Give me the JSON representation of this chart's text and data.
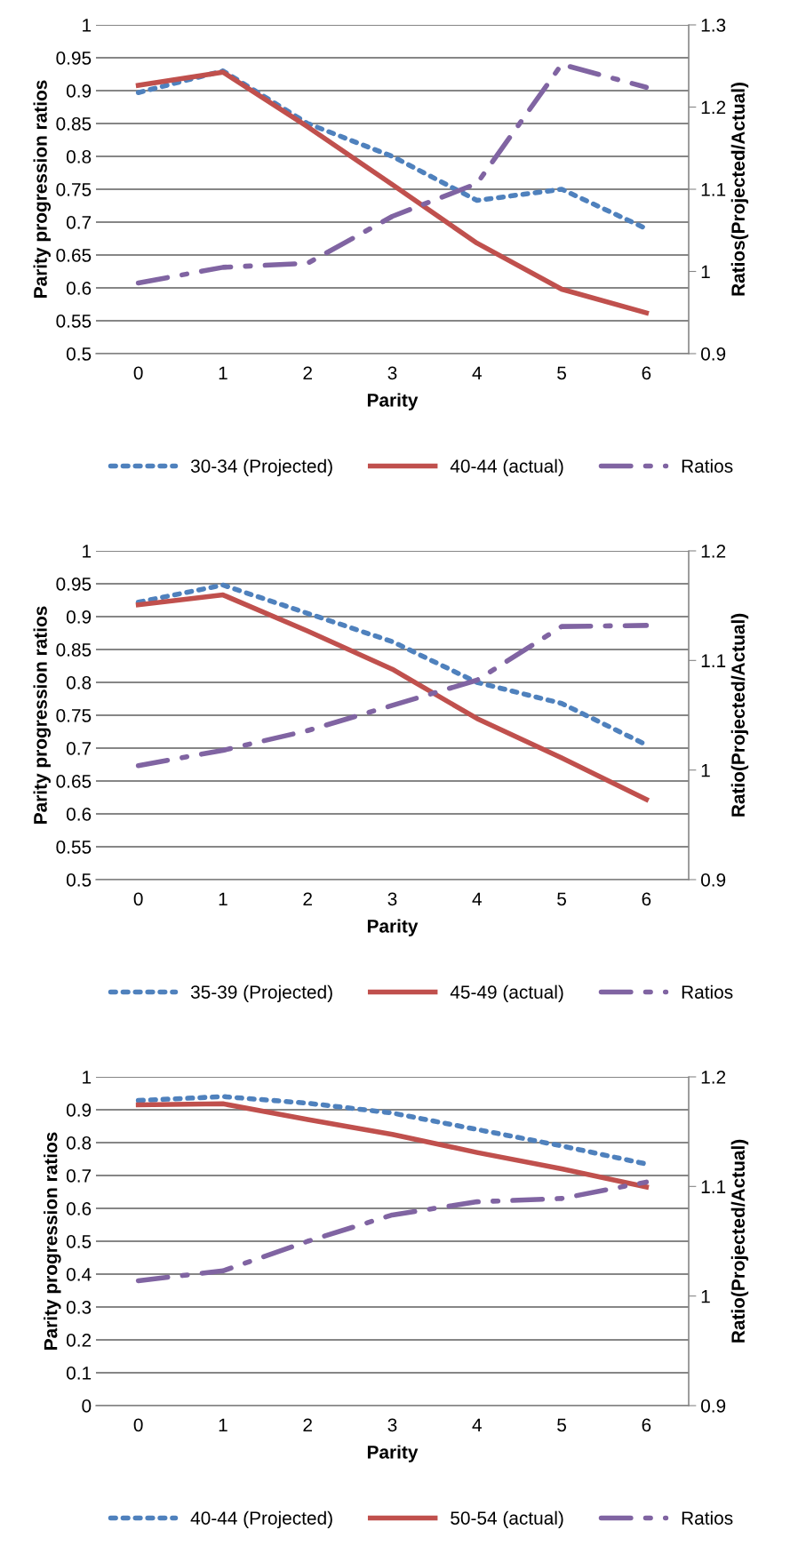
{
  "chart_data": [
    {
      "type": "line",
      "xlabel": "Parity",
      "ylabel": "Parity progression ratios",
      "y2label": "Ratios(Projected/Actual)",
      "categories": [
        "0",
        "1",
        "2",
        "3",
        "4",
        "5",
        "6"
      ],
      "ylim": [
        0.5,
        1
      ],
      "yticks": [
        {
          "value": 0.5,
          "label": "0.5"
        },
        {
          "value": 0.55,
          "label": "0.55"
        },
        {
          "value": 0.6,
          "label": "0.6"
        },
        {
          "value": 0.65,
          "label": "0.65"
        },
        {
          "value": 0.7,
          "label": "0.7"
        },
        {
          "value": 0.75,
          "label": "0.75"
        },
        {
          "value": 0.8,
          "label": "0.8"
        },
        {
          "value": 0.85,
          "label": "0.85"
        },
        {
          "value": 0.9,
          "label": "0.9"
        },
        {
          "value": 0.95,
          "label": "0.95"
        },
        {
          "value": 1,
          "label": "1"
        }
      ],
      "y2lim": [
        0.9,
        1.3
      ],
      "y2ticks": [
        0.9,
        1,
        1.1,
        1.2,
        1.3
      ],
      "grid": "y",
      "legend": "bottom",
      "series": [
        {
          "name": "30-34 (Projected)",
          "color": "#4f81bd",
          "line_style": "dotted",
          "values": [
            0.897,
            0.93,
            0.85,
            0.8,
            0.733,
            0.75,
            0.69
          ]
        },
        {
          "name": "40-44 (actual)",
          "color": "#c0504d",
          "line_style": "solid",
          "values": [
            0.908,
            0.928,
            0.845,
            0.757,
            0.668,
            0.598,
            0.562
          ]
        },
        {
          "name": "Ratios",
          "color": "#8064a2",
          "line_style": "dashdot",
          "axis": "y2",
          "values": [
            0.986,
            1.005,
            1.01,
            1.067,
            1.107,
            1.252,
            1.224
          ]
        }
      ]
    },
    {
      "type": "line",
      "xlabel": "Parity",
      "ylabel": "Parity progression ratios",
      "y2label": "Ratio(Projected/Actual)",
      "categories": [
        "0",
        "1",
        "2",
        "3",
        "4",
        "5",
        "6"
      ],
      "ylim": [
        0.5,
        1
      ],
      "yticks": [
        {
          "value": 0.5,
          "label": "0.5"
        },
        {
          "value": 0.55,
          "label": "0.55"
        },
        {
          "value": 0.6,
          "label": "0.6"
        },
        {
          "value": 0.65,
          "label": "0.65"
        },
        {
          "value": 0.7,
          "label": "0.7"
        },
        {
          "value": 0.75,
          "label": "0.75"
        },
        {
          "value": 0.8,
          "label": "0.8"
        },
        {
          "value": 0.85,
          "label": "0.85"
        },
        {
          "value": 0.9,
          "label": "0.9"
        },
        {
          "value": 0.95,
          "label": "0.95"
        },
        {
          "value": 1,
          "label": "1"
        }
      ],
      "y2lim": [
        0.9,
        1.2
      ],
      "y2ticks": [
        0.9,
        1,
        1.1,
        1.2
      ],
      "grid": "y",
      "legend": "bottom",
      "series": [
        {
          "name": "35-39 (Projected)",
          "color": "#4f81bd",
          "line_style": "dotted",
          "values": [
            0.922,
            0.948,
            0.905,
            0.862,
            0.8,
            0.768,
            0.705
          ]
        },
        {
          "name": "45-49 (actual)",
          "color": "#c0504d",
          "line_style": "solid",
          "values": [
            0.918,
            0.933,
            0.878,
            0.82,
            0.745,
            0.685,
            0.622
          ]
        },
        {
          "name": "Ratios",
          "color": "#8064a2",
          "line_style": "dashdot",
          "axis": "y2",
          "values": [
            1.004,
            1.018,
            1.036,
            1.059,
            1.082,
            1.131,
            1.132
          ]
        }
      ]
    },
    {
      "type": "line",
      "xlabel": "Parity",
      "ylabel": "Parity progression ratios",
      "y2label": "Ratio(Projected/Actual)",
      "categories": [
        "0",
        "1",
        "2",
        "3",
        "4",
        "5",
        "6"
      ],
      "ylim": [
        0,
        1
      ],
      "yticks": [
        0,
        0.1,
        0.2,
        0.3,
        0.4,
        0.5,
        0.6,
        0.7,
        0.8,
        0.9,
        1
      ],
      "y2lim": [
        0.9,
        1.2
      ],
      "y2ticks": [
        0.9,
        1,
        1.1,
        1.2
      ],
      "grid": "y",
      "legend": "bottom",
      "series": [
        {
          "name": "40-44 (Projected)",
          "color": "#4f81bd",
          "line_style": "dotted",
          "values": [
            0.928,
            0.94,
            0.92,
            0.89,
            0.84,
            0.79,
            0.735
          ]
        },
        {
          "name": "50-54 (actual)",
          "color": "#c0504d",
          "line_style": "solid",
          "values": [
            0.915,
            0.918,
            0.87,
            0.825,
            0.77,
            0.72,
            0.665
          ]
        },
        {
          "name": "Ratios",
          "color": "#8064a2",
          "line_style": "dashdot",
          "axis": "y2",
          "values": [
            1.014,
            1.023,
            1.05,
            1.074,
            1.086,
            1.089,
            1.104
          ]
        }
      ]
    }
  ]
}
